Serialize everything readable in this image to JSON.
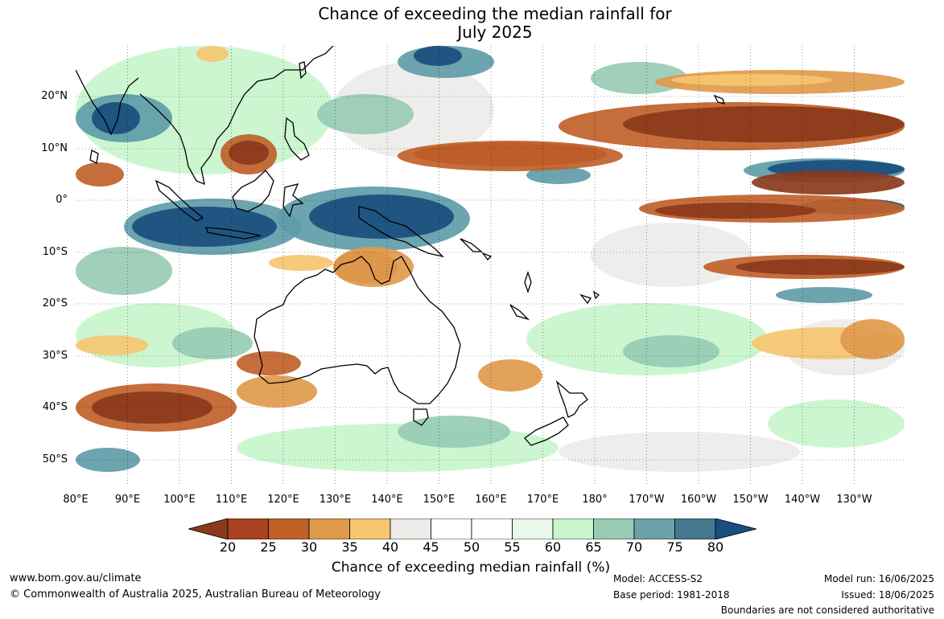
{
  "title": {
    "line1": "Chance of exceeding the median rainfall for",
    "line2": "July 2025"
  },
  "map": {
    "lat_labels": [
      "20°N",
      "10°N",
      "0°",
      "10°S",
      "20°S",
      "30°S",
      "40°S",
      "50°S"
    ],
    "lon_labels": [
      "80°E",
      "90°E",
      "100°E",
      "110°E",
      "120°E",
      "130°E",
      "140°E",
      "150°E",
      "160°E",
      "170°E",
      "180°",
      "170°W",
      "160°W",
      "150°W",
      "140°W",
      "130°W"
    ],
    "colors": {
      "very_dry": "#8b3a1c",
      "dry": "#c0612a",
      "moderate_dry": "#e09a4c",
      "slight_dry": "#f6c670",
      "neutral_grey": "#ececea",
      "slight_wet": "#c8f5cc",
      "moderate_wet": "#98cbb4",
      "wet": "#5f9ca8",
      "very_wet": "#1a4e7e",
      "coastline": "#000000"
    }
  },
  "colorbar": {
    "ticks": [
      "20",
      "25",
      "30",
      "35",
      "40",
      "45",
      "50",
      "55",
      "60",
      "65",
      "70",
      "75",
      "80"
    ],
    "colors": [
      "#8b3a1c",
      "#a94322",
      "#c0612a",
      "#e09a4c",
      "#f6c670",
      "#ecebe8",
      "#ffffff",
      "#ffffff",
      "#e9f8ea",
      "#c8f5cc",
      "#98cbb4",
      "#6aa2a8",
      "#44788f",
      "#1a4e7e"
    ],
    "label": "Chance of exceeding median rainfall (%)"
  },
  "footer": {
    "website": "www.bom.gov.au/climate",
    "copyright": "© Commonwealth of Australia 2025, Australian Bureau of Meteorology",
    "model": "Model: ACCESS-S2",
    "base_period": "Base period: 1981-2018",
    "model_run": "Model run: 16/06/2025",
    "issued": "Issued: 18/06/2025",
    "disclaimer": "Boundaries are not considered authoritative"
  }
}
